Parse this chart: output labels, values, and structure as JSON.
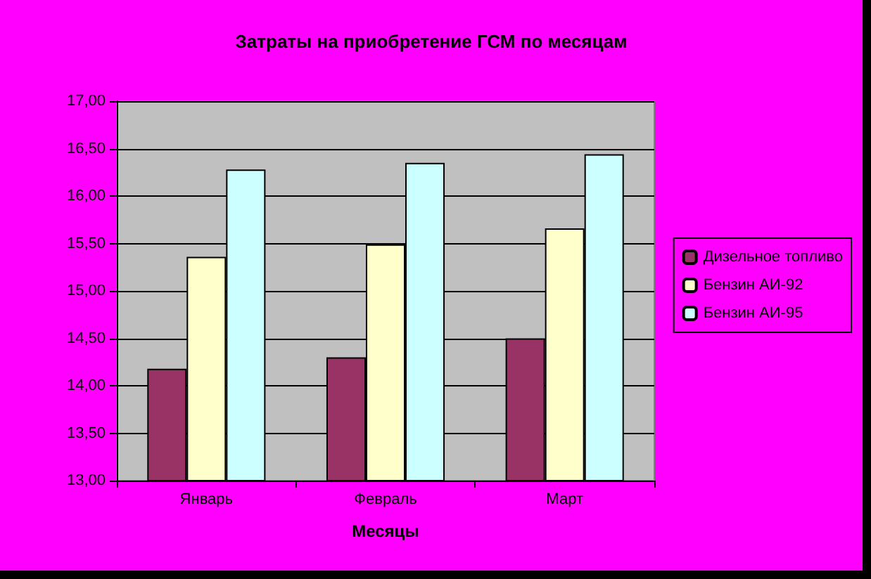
{
  "chart_data": {
    "type": "bar",
    "title": "Затраты на приобретение ГСМ по месяцам",
    "xlabel": "Месяцы",
    "categories": [
      "Январь",
      "Февраль",
      "Март"
    ],
    "series": [
      {
        "name": "Дизельное топливо",
        "color": "#993366",
        "values": [
          14.18,
          14.3,
          14.5
        ]
      },
      {
        "name": "Бензин АИ-92",
        "color": "#ffffcc",
        "values": [
          15.36,
          15.49,
          15.66
        ]
      },
      {
        "name": "Бензин АИ-95",
        "color": "#ccffff",
        "values": [
          16.28,
          16.35,
          16.44
        ]
      }
    ],
    "ylim": [
      13,
      17
    ],
    "yticks": [
      {
        "value": 13,
        "label": "13,00"
      },
      {
        "value": 13.5,
        "label": "13,50"
      },
      {
        "value": 14,
        "label": "14,00"
      },
      {
        "value": 14.5,
        "label": "14,50"
      },
      {
        "value": 15,
        "label": "15,00"
      },
      {
        "value": 15.5,
        "label": "15,50"
      },
      {
        "value": 16,
        "label": "16,00"
      },
      {
        "value": 16.5,
        "label": "16,50"
      },
      {
        "value": 17,
        "label": "17,00"
      }
    ],
    "grid": "y",
    "legend": "right"
  }
}
